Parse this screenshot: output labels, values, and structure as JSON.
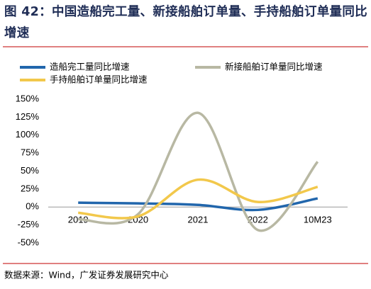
{
  "chart_data": {
    "type": "line",
    "title": "图 42：中国造船完工量、新接船舶订单量、手持船舶订单量同比增速",
    "source": "数据来源：Wind，广发证券发展研究中心",
    "categories": [
      "2019",
      "2020",
      "2021",
      "2022",
      "10M23"
    ],
    "series": [
      {
        "name": "造船完工量同比增速",
        "color": "#2166ac",
        "values": [
          6,
          5,
          3,
          -4,
          12
        ]
      },
      {
        "name": "新接船舶订单量同比增速",
        "color": "#b8b8a3",
        "values": [
          -17,
          -10,
          131,
          -32,
          63
        ]
      },
      {
        "name": "手持船舶订单量同比增速",
        "color": "#f2c84b",
        "values": [
          -8,
          -13,
          38,
          7,
          28
        ]
      }
    ],
    "ylim": [
      -50,
      150
    ],
    "yticks": [
      {
        "value": -50,
        "label": "-50%"
      },
      {
        "value": -25,
        "label": "-25%"
      },
      {
        "value": 0,
        "label": "0%"
      },
      {
        "value": 25,
        "label": "25%"
      },
      {
        "value": 50,
        "label": "50%"
      },
      {
        "value": 75,
        "label": "75%"
      },
      {
        "value": 100,
        "label": "100%"
      },
      {
        "value": 125,
        "label": "125%"
      },
      {
        "value": 150,
        "label": "150%"
      }
    ],
    "grid": false
  }
}
